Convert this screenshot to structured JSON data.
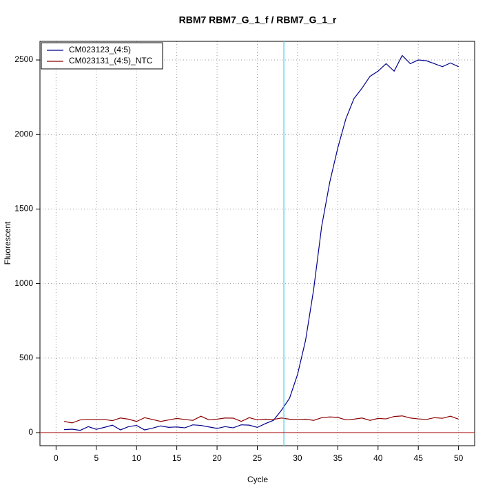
{
  "chart_data": {
    "type": "line",
    "title": "RBM7  RBM7_G_1_f / RBM7_G_1_r",
    "xlabel": "Cycle",
    "ylabel": "Fluorescent",
    "x": [
      1,
      2,
      3,
      4,
      5,
      6,
      7,
      8,
      9,
      10,
      11,
      12,
      13,
      14,
      15,
      16,
      17,
      18,
      19,
      20,
      21,
      22,
      23,
      24,
      25,
      26,
      27,
      28,
      29,
      30,
      31,
      32,
      33,
      34,
      35,
      36,
      37,
      38,
      39,
      40,
      41,
      42,
      43,
      44,
      45,
      46,
      47,
      48,
      49,
      50
    ],
    "series": [
      {
        "name": "CM023123_(4:5)",
        "color": "#00008b",
        "values": [
          20,
          23,
          15,
          40,
          22,
          35,
          50,
          18,
          40,
          48,
          18,
          30,
          45,
          35,
          38,
          32,
          52,
          48,
          38,
          28,
          40,
          32,
          52,
          50,
          35,
          60,
          82,
          150,
          230,
          390,
          620,
          960,
          1385,
          1680,
          1910,
          2105,
          2240,
          2310,
          2390,
          2425,
          2475,
          2425,
          2530,
          2475,
          2500,
          2495,
          2475,
          2455,
          2480,
          2455
        ]
      },
      {
        "name": "CM023131_(4:5)_NTC",
        "color": "#8b0000",
        "values": [
          75,
          65,
          85,
          88,
          88,
          88,
          80,
          98,
          90,
          75,
          100,
          88,
          75,
          85,
          95,
          88,
          82,
          110,
          85,
          90,
          98,
          97,
          75,
          100,
          85,
          90,
          88,
          98,
          90,
          88,
          90,
          82,
          100,
          105,
          102,
          85,
          90,
          98,
          82,
          95,
          92,
          108,
          112,
          98,
          92,
          88,
          100,
          96,
          110,
          90
        ]
      }
    ],
    "xlim": [
      -2,
      52
    ],
    "ylim": [
      -88,
      2625
    ],
    "xticks": [
      0,
      5,
      10,
      15,
      20,
      25,
      30,
      35,
      40,
      45,
      50
    ],
    "yticks": [
      0,
      500,
      1000,
      1500,
      2000,
      2500
    ],
    "grid": true,
    "legend": "top-left",
    "threshold_cycle": {
      "value": 28.3,
      "color": "#40d0e8"
    },
    "baseline": {
      "value": 0,
      "color": "#b22222"
    }
  }
}
